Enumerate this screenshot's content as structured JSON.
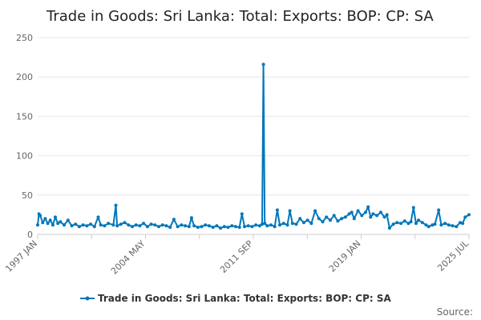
{
  "chart_data": {
    "type": "line",
    "title": "Trade in Goods: Sri Lanka: Total: Exports: BOP: CP: SA",
    "xlabel": "",
    "ylabel": "",
    "ylim": [
      0,
      250
    ],
    "yticks": [
      0,
      50,
      100,
      150,
      200,
      250
    ],
    "x_range": [
      "1997-01",
      "2025-07"
    ],
    "xtick_labels": [
      "1997 JAN",
      "2004 MAY",
      "2011 SEP",
      "2019 JAN",
      "2025 JUL"
    ],
    "grid": true,
    "legend_position": "bottom",
    "series": [
      {
        "name": "Trade in Goods: Sri Lanka: Total: Exports: BOP: CP: SA",
        "color": "#0077bb",
        "points": [
          [
            "1997-01",
            12
          ],
          [
            "1997-02",
            26
          ],
          [
            "1997-03",
            24
          ],
          [
            "1997-05",
            15
          ],
          [
            "1997-07",
            20
          ],
          [
            "1997-09",
            14
          ],
          [
            "1997-11",
            18
          ],
          [
            "1998-01",
            12
          ],
          [
            "1998-03",
            22
          ],
          [
            "1998-05",
            14
          ],
          [
            "1998-07",
            16
          ],
          [
            "1998-10",
            12
          ],
          [
            "1999-01",
            18
          ],
          [
            "1999-04",
            11
          ],
          [
            "1999-07",
            13
          ],
          [
            "1999-10",
            10
          ],
          [
            "2000-01",
            12
          ],
          [
            "2000-04",
            11
          ],
          [
            "2000-07",
            13
          ],
          [
            "2000-10",
            10
          ],
          [
            "2001-01",
            22
          ],
          [
            "2001-03",
            12
          ],
          [
            "2001-06",
            11
          ],
          [
            "2001-09",
            14
          ],
          [
            "2002-01",
            12
          ],
          [
            "2002-03",
            37
          ],
          [
            "2002-04",
            11
          ],
          [
            "2002-07",
            13
          ],
          [
            "2002-10",
            15
          ],
          [
            "2003-01",
            12
          ],
          [
            "2003-04",
            10
          ],
          [
            "2003-07",
            12
          ],
          [
            "2003-10",
            11
          ],
          [
            "2004-01",
            14
          ],
          [
            "2004-04",
            10
          ],
          [
            "2004-07",
            13
          ],
          [
            "2004-10",
            12
          ],
          [
            "2005-01",
            10
          ],
          [
            "2005-04",
            12
          ],
          [
            "2005-07",
            11
          ],
          [
            "2005-10",
            9
          ],
          [
            "2006-01",
            19
          ],
          [
            "2006-04",
            10
          ],
          [
            "2006-07",
            12
          ],
          [
            "2006-10",
            11
          ],
          [
            "2007-01",
            10
          ],
          [
            "2007-03",
            21
          ],
          [
            "2007-05",
            11
          ],
          [
            "2007-08",
            9
          ],
          [
            "2007-11",
            10
          ],
          [
            "2008-02",
            12
          ],
          [
            "2008-05",
            11
          ],
          [
            "2008-08",
            9
          ],
          [
            "2008-11",
            11
          ],
          [
            "2009-02",
            8
          ],
          [
            "2009-05",
            10
          ],
          [
            "2009-08",
            9
          ],
          [
            "2009-11",
            11
          ],
          [
            "2010-02",
            10
          ],
          [
            "2010-05",
            9
          ],
          [
            "2010-07",
            26
          ],
          [
            "2010-09",
            10
          ],
          [
            "2010-12",
            11
          ],
          [
            "2011-03",
            10
          ],
          [
            "2011-06",
            12
          ],
          [
            "2011-09",
            11
          ],
          [
            "2011-11",
            13
          ],
          [
            "2011-12",
            216
          ],
          [
            "2012-01",
            14
          ],
          [
            "2012-03",
            11
          ],
          [
            "2012-06",
            12
          ],
          [
            "2012-09",
            10
          ],
          [
            "2012-11",
            31
          ],
          [
            "2013-01",
            12
          ],
          [
            "2013-04",
            14
          ],
          [
            "2013-07",
            12
          ],
          [
            "2013-09",
            30
          ],
          [
            "2013-11",
            14
          ],
          [
            "2014-02",
            13
          ],
          [
            "2014-05",
            20
          ],
          [
            "2014-08",
            15
          ],
          [
            "2014-11",
            18
          ],
          [
            "2015-02",
            14
          ],
          [
            "2015-05",
            30
          ],
          [
            "2015-08",
            20
          ],
          [
            "2015-11",
            16
          ],
          [
            "2016-02",
            22
          ],
          [
            "2016-05",
            18
          ],
          [
            "2016-08",
            24
          ],
          [
            "2016-11",
            17
          ],
          [
            "2017-02",
            20
          ],
          [
            "2017-05",
            22
          ],
          [
            "2017-08",
            26
          ],
          [
            "2017-10",
            28
          ],
          [
            "2017-12",
            20
          ],
          [
            "2018-03",
            30
          ],
          [
            "2018-06",
            24
          ],
          [
            "2018-09",
            28
          ],
          [
            "2018-11",
            35
          ],
          [
            "2019-01",
            22
          ],
          [
            "2019-03",
            26
          ],
          [
            "2019-06",
            24
          ],
          [
            "2019-09",
            28
          ],
          [
            "2019-12",
            22
          ],
          [
            "2020-02",
            25
          ],
          [
            "2020-04",
            8
          ],
          [
            "2020-07",
            13
          ],
          [
            "2020-10",
            15
          ],
          [
            "2021-01",
            14
          ],
          [
            "2021-04",
            17
          ],
          [
            "2021-07",
            14
          ],
          [
            "2021-09",
            16
          ],
          [
            "2021-11",
            34
          ],
          [
            "2022-01",
            14
          ],
          [
            "2022-03",
            18
          ],
          [
            "2022-06",
            15
          ],
          [
            "2022-09",
            12
          ],
          [
            "2022-11",
            10
          ],
          [
            "2023-02",
            12
          ],
          [
            "2023-04",
            13
          ],
          [
            "2023-07",
            31
          ],
          [
            "2023-09",
            12
          ],
          [
            "2023-12",
            14
          ],
          [
            "2024-03",
            12
          ],
          [
            "2024-06",
            11
          ],
          [
            "2024-09",
            10
          ],
          [
            "2024-12",
            15
          ],
          [
            "2025-02",
            14
          ],
          [
            "2025-04",
            22
          ],
          [
            "2025-07",
            25
          ]
        ]
      }
    ]
  },
  "legend": {
    "label": "Trade in Goods: Sri Lanka: Total: Exports: BOP: CP: SA"
  },
  "footer": {
    "source_label": "Source:"
  },
  "colors": {
    "series": "#0077bb",
    "grid": "#e6e6e6",
    "axis": "#cccccc"
  }
}
